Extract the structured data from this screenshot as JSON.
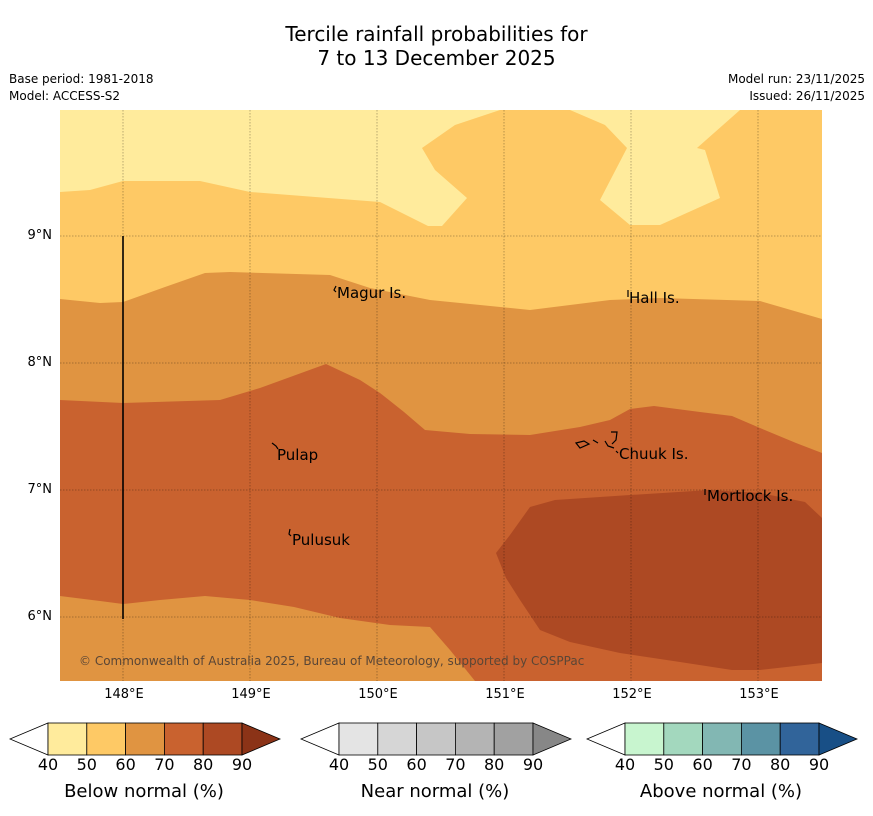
{
  "title": {
    "line1": "Tercile rainfall probabilities for",
    "line2": "7 to 13 December 2025"
  },
  "meta": {
    "base_period": "Base period: 1981-2018",
    "model": "Model: ACCESS-S2",
    "model_run": "Model run: 23/11/2025",
    "issued": "Issued: 26/11/2025"
  },
  "map": {
    "lat_labels": [
      "9°N",
      "8°N",
      "7°N",
      "6°N"
    ],
    "lon_labels": [
      "148°E",
      "149°E",
      "150°E",
      "151°E",
      "152°E",
      "153°E"
    ],
    "places": [
      "Magur Is.",
      "Hall Is.",
      "Pulap",
      "Chuuk Is.",
      "Mortlock Is.",
      "Pulusuk"
    ],
    "copyright": "© Commonwealth of Australia 2025, Bureau of Meteorology, supported by COSPPac"
  },
  "colorbars": [
    {
      "label": "Below normal (%)",
      "ticks": [
        "40",
        "50",
        "60",
        "70",
        "80",
        "90"
      ],
      "colors": [
        "#ffffff",
        "#ffeb9c",
        "#fec965",
        "#e09441",
        "#c9622f",
        "#ad4923",
        "#8b3317"
      ]
    },
    {
      "label": "Near normal (%)",
      "ticks": [
        "40",
        "50",
        "60",
        "70",
        "80",
        "90"
      ],
      "colors": [
        "#ffffff",
        "#e4e4e4",
        "#d6d6d6",
        "#c6c6c6",
        "#b4b4b4",
        "#a1a1a1",
        "#878787"
      ]
    },
    {
      "label": "Above normal (%)",
      "ticks": [
        "40",
        "50",
        "60",
        "70",
        "80",
        "90"
      ],
      "colors": [
        "#ffffff",
        "#c8f5cf",
        "#a3d8be",
        "#82b7b3",
        "#5b93a4",
        "#31649a",
        "#184f86"
      ]
    }
  ],
  "legend_colors": {
    "below_40_50": "#ffeb9c",
    "below_50_60": "#fec965",
    "below_60_70": "#e09441",
    "below_70_80": "#c9622f",
    "below_80_90": "#ad4923"
  }
}
